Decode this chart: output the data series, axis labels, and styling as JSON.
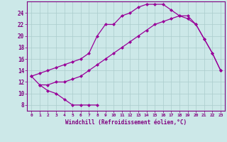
{
  "bg_color": "#cce8e8",
  "line_color": "#990099",
  "grid_color": "#aacccc",
  "xlabel": "Windchill (Refroidissement éolien,°C)",
  "xlabel_color": "#800080",
  "tick_color": "#800080",
  "xlim": [
    -0.5,
    23.5
  ],
  "ylim": [
    7,
    26
  ],
  "yticks": [
    8,
    10,
    12,
    14,
    16,
    18,
    20,
    22,
    24
  ],
  "xticks": [
    0,
    1,
    2,
    3,
    4,
    5,
    6,
    7,
    8,
    9,
    10,
    11,
    12,
    13,
    14,
    15,
    16,
    17,
    18,
    19,
    20,
    21,
    22,
    23
  ],
  "line1_x": [
    0,
    1,
    2,
    3,
    4,
    5,
    6,
    7,
    8
  ],
  "line1_y": [
    13,
    11.5,
    10.5,
    10,
    9,
    8,
    8,
    8,
    8
  ],
  "line2_x": [
    0,
    1,
    2,
    3,
    4,
    5,
    6,
    7,
    8,
    9,
    10,
    11,
    12,
    13,
    14,
    15,
    16,
    17,
    18,
    19,
    20,
    21,
    22,
    23
  ],
  "line2_y": [
    13,
    13.5,
    14,
    14.5,
    15,
    15.5,
    16,
    17,
    20,
    22,
    22,
    23.5,
    24,
    25,
    25.5,
    25.5,
    25.5,
    24.5,
    23.5,
    23,
    22,
    19.5,
    17,
    14
  ],
  "line3_x": [
    1,
    2,
    3,
    4,
    5,
    6,
    7,
    8,
    9,
    10,
    11,
    12,
    13,
    14,
    15,
    16,
    17,
    18,
    19,
    20,
    21,
    22,
    23
  ],
  "line3_y": [
    11.5,
    11.5,
    12,
    12,
    12.5,
    13,
    14,
    15,
    16,
    17,
    18,
    19,
    20,
    21,
    22,
    22.5,
    23,
    23.5,
    23.5,
    22,
    19.5,
    17,
    14
  ]
}
